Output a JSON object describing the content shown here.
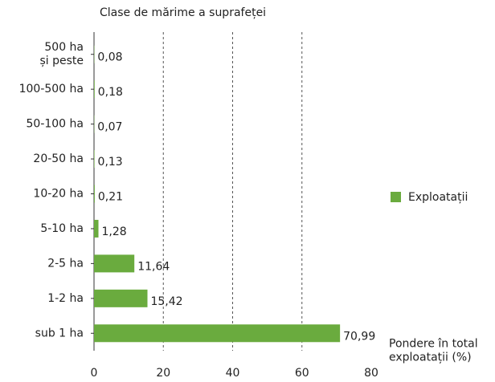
{
  "chart_data": {
    "type": "bar",
    "orientation": "horizontal",
    "y_axis_title": "Clase de mărime a suprafeței",
    "x_axis_title": "Pondere în total\nexploatații (%)",
    "categories": [
      "500 ha\nși peste",
      "100-500 ha",
      "50-100 ha",
      "20-50 ha",
      "10-20 ha",
      "5-10 ha",
      "2-5 ha",
      "1-2 ha",
      "sub 1 ha"
    ],
    "series": [
      {
        "name": "Exploatații",
        "color": "#6aab3e",
        "values": [
          0.08,
          0.18,
          0.07,
          0.13,
          0.21,
          1.28,
          11.64,
          15.42,
          70.99
        ],
        "value_labels": [
          "0,08",
          "0,18",
          "0,07",
          "0,13",
          "0,21",
          "1,28",
          "11,64",
          "15,42",
          "70,99"
        ]
      }
    ],
    "xlim": [
      0,
      80
    ],
    "xticks": [
      0,
      20,
      40,
      60,
      80
    ],
    "grid": true,
    "legend": "right"
  }
}
